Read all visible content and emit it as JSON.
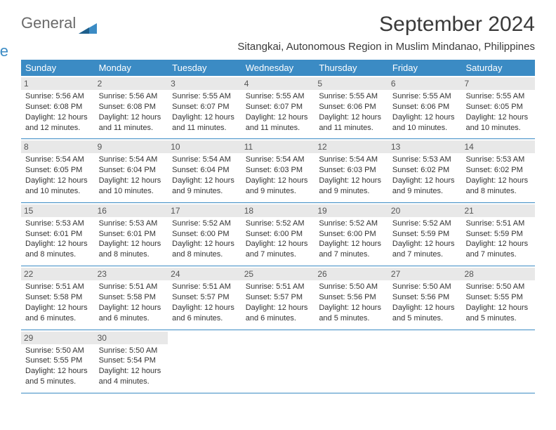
{
  "logo": {
    "text1": "General",
    "text2": "Blue"
  },
  "title": "September 2024",
  "location": "Sitangkai, Autonomous Region in Muslim Mindanao, Philippines",
  "colors": {
    "header_bg": "#3b8bc4",
    "header_text": "#ffffff",
    "daynum_bg": "#e8e8e8",
    "text": "#333333",
    "logo_gray": "#6a6a6a",
    "logo_blue": "#3b8bc4",
    "border": "#3b8bc4"
  },
  "typography": {
    "title_fontsize": 30,
    "location_fontsize": 15,
    "weekday_fontsize": 13,
    "daynum_fontsize": 12,
    "body_fontsize": 11
  },
  "weekdays": [
    "Sunday",
    "Monday",
    "Tuesday",
    "Wednesday",
    "Thursday",
    "Friday",
    "Saturday"
  ],
  "weeks": [
    [
      {
        "n": "1",
        "sr": "Sunrise: 5:56 AM",
        "ss": "Sunset: 6:08 PM",
        "d1": "Daylight: 12 hours",
        "d2": "and 12 minutes."
      },
      {
        "n": "2",
        "sr": "Sunrise: 5:56 AM",
        "ss": "Sunset: 6:08 PM",
        "d1": "Daylight: 12 hours",
        "d2": "and 11 minutes."
      },
      {
        "n": "3",
        "sr": "Sunrise: 5:55 AM",
        "ss": "Sunset: 6:07 PM",
        "d1": "Daylight: 12 hours",
        "d2": "and 11 minutes."
      },
      {
        "n": "4",
        "sr": "Sunrise: 5:55 AM",
        "ss": "Sunset: 6:07 PM",
        "d1": "Daylight: 12 hours",
        "d2": "and 11 minutes."
      },
      {
        "n": "5",
        "sr": "Sunrise: 5:55 AM",
        "ss": "Sunset: 6:06 PM",
        "d1": "Daylight: 12 hours",
        "d2": "and 11 minutes."
      },
      {
        "n": "6",
        "sr": "Sunrise: 5:55 AM",
        "ss": "Sunset: 6:06 PM",
        "d1": "Daylight: 12 hours",
        "d2": "and 10 minutes."
      },
      {
        "n": "7",
        "sr": "Sunrise: 5:55 AM",
        "ss": "Sunset: 6:05 PM",
        "d1": "Daylight: 12 hours",
        "d2": "and 10 minutes."
      }
    ],
    [
      {
        "n": "8",
        "sr": "Sunrise: 5:54 AM",
        "ss": "Sunset: 6:05 PM",
        "d1": "Daylight: 12 hours",
        "d2": "and 10 minutes."
      },
      {
        "n": "9",
        "sr": "Sunrise: 5:54 AM",
        "ss": "Sunset: 6:04 PM",
        "d1": "Daylight: 12 hours",
        "d2": "and 10 minutes."
      },
      {
        "n": "10",
        "sr": "Sunrise: 5:54 AM",
        "ss": "Sunset: 6:04 PM",
        "d1": "Daylight: 12 hours",
        "d2": "and 9 minutes."
      },
      {
        "n": "11",
        "sr": "Sunrise: 5:54 AM",
        "ss": "Sunset: 6:03 PM",
        "d1": "Daylight: 12 hours",
        "d2": "and 9 minutes."
      },
      {
        "n": "12",
        "sr": "Sunrise: 5:54 AM",
        "ss": "Sunset: 6:03 PM",
        "d1": "Daylight: 12 hours",
        "d2": "and 9 minutes."
      },
      {
        "n": "13",
        "sr": "Sunrise: 5:53 AM",
        "ss": "Sunset: 6:02 PM",
        "d1": "Daylight: 12 hours",
        "d2": "and 9 minutes."
      },
      {
        "n": "14",
        "sr": "Sunrise: 5:53 AM",
        "ss": "Sunset: 6:02 PM",
        "d1": "Daylight: 12 hours",
        "d2": "and 8 minutes."
      }
    ],
    [
      {
        "n": "15",
        "sr": "Sunrise: 5:53 AM",
        "ss": "Sunset: 6:01 PM",
        "d1": "Daylight: 12 hours",
        "d2": "and 8 minutes."
      },
      {
        "n": "16",
        "sr": "Sunrise: 5:53 AM",
        "ss": "Sunset: 6:01 PM",
        "d1": "Daylight: 12 hours",
        "d2": "and 8 minutes."
      },
      {
        "n": "17",
        "sr": "Sunrise: 5:52 AM",
        "ss": "Sunset: 6:00 PM",
        "d1": "Daylight: 12 hours",
        "d2": "and 8 minutes."
      },
      {
        "n": "18",
        "sr": "Sunrise: 5:52 AM",
        "ss": "Sunset: 6:00 PM",
        "d1": "Daylight: 12 hours",
        "d2": "and 7 minutes."
      },
      {
        "n": "19",
        "sr": "Sunrise: 5:52 AM",
        "ss": "Sunset: 6:00 PM",
        "d1": "Daylight: 12 hours",
        "d2": "and 7 minutes."
      },
      {
        "n": "20",
        "sr": "Sunrise: 5:52 AM",
        "ss": "Sunset: 5:59 PM",
        "d1": "Daylight: 12 hours",
        "d2": "and 7 minutes."
      },
      {
        "n": "21",
        "sr": "Sunrise: 5:51 AM",
        "ss": "Sunset: 5:59 PM",
        "d1": "Daylight: 12 hours",
        "d2": "and 7 minutes."
      }
    ],
    [
      {
        "n": "22",
        "sr": "Sunrise: 5:51 AM",
        "ss": "Sunset: 5:58 PM",
        "d1": "Daylight: 12 hours",
        "d2": "and 6 minutes."
      },
      {
        "n": "23",
        "sr": "Sunrise: 5:51 AM",
        "ss": "Sunset: 5:58 PM",
        "d1": "Daylight: 12 hours",
        "d2": "and 6 minutes."
      },
      {
        "n": "24",
        "sr": "Sunrise: 5:51 AM",
        "ss": "Sunset: 5:57 PM",
        "d1": "Daylight: 12 hours",
        "d2": "and 6 minutes."
      },
      {
        "n": "25",
        "sr": "Sunrise: 5:51 AM",
        "ss": "Sunset: 5:57 PM",
        "d1": "Daylight: 12 hours",
        "d2": "and 6 minutes."
      },
      {
        "n": "26",
        "sr": "Sunrise: 5:50 AM",
        "ss": "Sunset: 5:56 PM",
        "d1": "Daylight: 12 hours",
        "d2": "and 5 minutes."
      },
      {
        "n": "27",
        "sr": "Sunrise: 5:50 AM",
        "ss": "Sunset: 5:56 PM",
        "d1": "Daylight: 12 hours",
        "d2": "and 5 minutes."
      },
      {
        "n": "28",
        "sr": "Sunrise: 5:50 AM",
        "ss": "Sunset: 5:55 PM",
        "d1": "Daylight: 12 hours",
        "d2": "and 5 minutes."
      }
    ],
    [
      {
        "n": "29",
        "sr": "Sunrise: 5:50 AM",
        "ss": "Sunset: 5:55 PM",
        "d1": "Daylight: 12 hours",
        "d2": "and 5 minutes."
      },
      {
        "n": "30",
        "sr": "Sunrise: 5:50 AM",
        "ss": "Sunset: 5:54 PM",
        "d1": "Daylight: 12 hours",
        "d2": "and 4 minutes."
      },
      null,
      null,
      null,
      null,
      null
    ]
  ]
}
